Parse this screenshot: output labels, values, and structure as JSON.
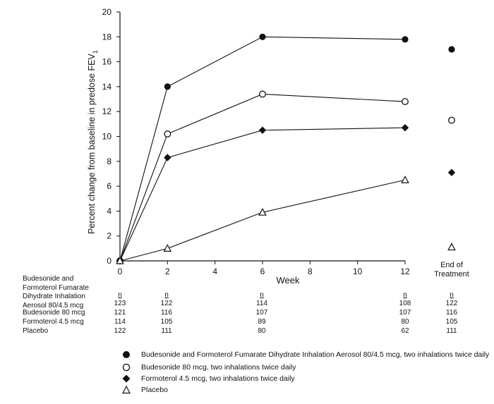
{
  "chart_data": {
    "type": "line",
    "xlabel": "Week",
    "ylabel": "Percent change from baseline in predose FEV",
    "ylabel_subscript": "1",
    "x": [
      0,
      2,
      6,
      12
    ],
    "xticks": [
      "0",
      "2",
      "4",
      "6",
      "8",
      "10",
      "12"
    ],
    "yticks": [
      "0",
      "2",
      "4",
      "6",
      "8",
      "10",
      "12",
      "14",
      "16",
      "18",
      "20"
    ],
    "xlim": [
      0,
      12
    ],
    "ylim": [
      0,
      20
    ],
    "end_of_treatment_label": [
      "End of",
      "Treatment"
    ],
    "series": [
      {
        "name": "Budesonide and Formoterol Fumarate Dihydrate Inhalation Aerosol 80/4.5 mcg, two inhalations twice daily",
        "marker": "filled-circle",
        "values": [
          0,
          14.0,
          18.0,
          17.8
        ],
        "end_of_treatment": 17.0
      },
      {
        "name": "Budesonide 80 mcg, two inhalations twice daily",
        "marker": "open-circle",
        "values": [
          0,
          10.2,
          13.4,
          12.8
        ],
        "end_of_treatment": 11.3
      },
      {
        "name": "Formoterol 4.5 mcg, two inhalations twice daily",
        "marker": "filled-diamond",
        "values": [
          0,
          8.3,
          10.5,
          10.7
        ],
        "end_of_treatment": 7.1
      },
      {
        "name": "Placebo",
        "marker": "open-triangle",
        "values": [
          0,
          1.0,
          3.9,
          6.5
        ],
        "end_of_treatment": 1.1
      }
    ]
  },
  "table": {
    "header_label": "n",
    "rows": [
      {
        "label_lines": [
          "Budesonide and",
          "Formoterol Fumarate",
          "Dihydrate Inhalation",
          "Aerosol 80/4.5 mcg"
        ],
        "n": [
          "123",
          "122",
          "114",
          "108",
          "122"
        ]
      },
      {
        "label_lines": [
          "Budesonide 80 mcg"
        ],
        "n": [
          "121",
          "116",
          "107",
          "107",
          "116"
        ]
      },
      {
        "label_lines": [
          "Formoterol 4.5 mcg"
        ],
        "n": [
          "114",
          "105",
          "89",
          "80",
          "105"
        ]
      },
      {
        "label_lines": [
          "Placebo"
        ],
        "n": [
          "122",
          "111",
          "80",
          "62",
          "111"
        ]
      }
    ]
  }
}
